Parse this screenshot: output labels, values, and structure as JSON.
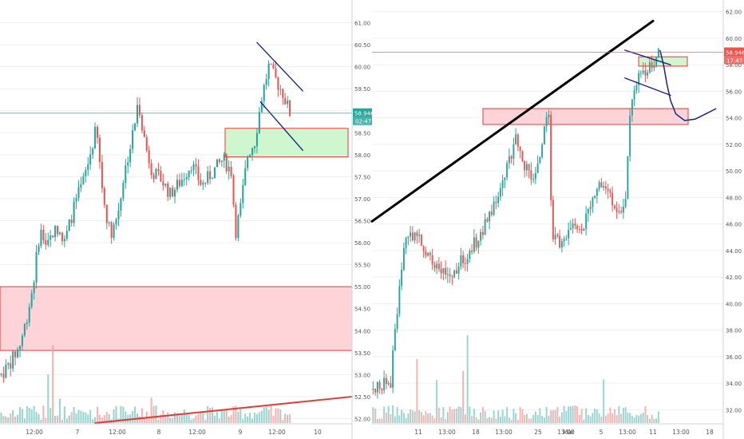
{
  "colors": {
    "up": "#26a69a",
    "down": "#ef5350",
    "vol_up": "#80cbc4",
    "vol_down": "#f4a09c",
    "zone_red_fill": "#ffcdd2",
    "zone_red_edge": "#e53935",
    "zone_green_fill": "#c8f5c8",
    "zone_green_edge": "#e53935",
    "price_line_left": "#26a69a",
    "price_line_right": "#ef5350",
    "trendline_black": "#000000",
    "trendline_red": "#e53935",
    "channel": "#1a237e",
    "grid": "#eef0f3",
    "axis_text": "#555555"
  },
  "chart_data": [
    {
      "type": "candlestick",
      "panel": "left",
      "ylim": [
        51.9,
        61.3
      ],
      "y_ticks": [
        "52.00",
        "52.50",
        "53.00",
        "53.50",
        "54.00",
        "54.50",
        "55.00",
        "55.50",
        "56.00",
        "56.50",
        "57.00",
        "57.50",
        "58.00",
        "58.50",
        "59.00",
        "59.50",
        "60.00",
        "60.50",
        "61.00"
      ],
      "x_ticks": [
        "12:00",
        "7",
        "12:00",
        "8",
        "12:00",
        "9",
        "12:00",
        "10"
      ],
      "last_price": {
        "value": "58.946",
        "countdown": "02:47"
      },
      "zones": [
        {
          "kind": "resistance",
          "color": "red",
          "y1": 53.55,
          "y2": 55.0
        },
        {
          "kind": "target",
          "color": "green",
          "y1": 57.95,
          "y2": 58.6
        }
      ],
      "trendlines": [
        {
          "color": "channel",
          "points": [
            [
              0.73,
              60.55
            ],
            [
              0.86,
              59.45
            ]
          ]
        },
        {
          "color": "channel",
          "points": [
            [
              0.74,
              59.2
            ],
            [
              0.86,
              58.1
            ]
          ]
        },
        {
          "color": "red",
          "points": [
            [
              0.27,
              51.9
            ],
            [
              1.0,
              52.5
            ]
          ]
        }
      ],
      "shape": [
        {
          "t": 0.0,
          "v": 53.0
        },
        {
          "t": 0.02,
          "v": 53.2
        },
        {
          "t": 0.05,
          "v": 53.6
        },
        {
          "t": 0.07,
          "v": 54.2
        },
        {
          "t": 0.09,
          "v": 55.0
        },
        {
          "t": 0.11,
          "v": 56.3
        },
        {
          "t": 0.13,
          "v": 55.9
        },
        {
          "t": 0.15,
          "v": 56.3
        },
        {
          "t": 0.18,
          "v": 56.0
        },
        {
          "t": 0.21,
          "v": 56.9
        },
        {
          "t": 0.23,
          "v": 57.3
        },
        {
          "t": 0.25,
          "v": 57.9
        },
        {
          "t": 0.27,
          "v": 58.6
        },
        {
          "t": 0.29,
          "v": 57.0
        },
        {
          "t": 0.31,
          "v": 56.2
        },
        {
          "t": 0.33,
          "v": 56.6
        },
        {
          "t": 0.35,
          "v": 57.6
        },
        {
          "t": 0.37,
          "v": 58.3
        },
        {
          "t": 0.39,
          "v": 59.2
        },
        {
          "t": 0.41,
          "v": 58.2
        },
        {
          "t": 0.43,
          "v": 57.6
        },
        {
          "t": 0.45,
          "v": 57.5
        },
        {
          "t": 0.48,
          "v": 57.1
        },
        {
          "t": 0.51,
          "v": 57.4
        },
        {
          "t": 0.54,
          "v": 57.8
        },
        {
          "t": 0.57,
          "v": 57.3
        },
        {
          "t": 0.6,
          "v": 57.6
        },
        {
          "t": 0.63,
          "v": 57.9
        },
        {
          "t": 0.655,
          "v": 57.6
        },
        {
          "t": 0.665,
          "v": 56.2
        },
        {
          "t": 0.68,
          "v": 56.8
        },
        {
          "t": 0.7,
          "v": 58.0
        },
        {
          "t": 0.72,
          "v": 58.3
        },
        {
          "t": 0.74,
          "v": 59.3
        },
        {
          "t": 0.76,
          "v": 60.0
        },
        {
          "t": 0.78,
          "v": 59.7
        },
        {
          "t": 0.8,
          "v": 59.4
        },
        {
          "t": 0.82,
          "v": 58.95
        }
      ]
    },
    {
      "type": "candlestick",
      "panel": "right",
      "ylim": [
        31.0,
        62.4
      ],
      "y_ticks": [
        "32.00",
        "34.00",
        "36.00",
        "38.00",
        "40.00",
        "42.00",
        "44.00",
        "46.00",
        "48.00",
        "50.00",
        "52.00",
        "54.00",
        "56.00",
        "58.00",
        "60.00",
        "62.00"
      ],
      "x_ticks": [
        "11",
        "13:00",
        "18",
        "13:00",
        "25",
        "13:00",
        "Mar",
        "5",
        "13:00",
        "11",
        "13:00",
        "18"
      ],
      "last_price": {
        "value": "58.946",
        "countdown": "17:47"
      },
      "zones": [
        {
          "kind": "support",
          "color": "red",
          "y1": 53.5,
          "y2": 54.7
        },
        {
          "kind": "target",
          "color": "green",
          "y1": 57.9,
          "y2": 58.6
        }
      ],
      "trendlines": [
        {
          "color": "black",
          "points": [
            [
              0.0,
              46.2
            ],
            [
              0.8,
              61.3
            ]
          ]
        },
        {
          "color": "channel",
          "points": [
            [
              0.72,
              59.1
            ],
            [
              0.85,
              58.0
            ]
          ]
        },
        {
          "color": "channel",
          "points": [
            [
              0.72,
              57.0
            ],
            [
              0.85,
              55.7
            ]
          ]
        }
      ],
      "projection": [
        [
          0.82,
          59.1
        ],
        [
          0.83,
          58.0
        ],
        [
          0.84,
          56.5
        ],
        [
          0.85,
          55.3
        ],
        [
          0.865,
          54.3
        ],
        [
          0.89,
          53.8
        ],
        [
          0.92,
          53.9
        ],
        [
          0.95,
          54.3
        ],
        [
          0.98,
          54.7
        ]
      ],
      "shape": [
        {
          "t": 0.0,
          "v": 33.5
        },
        {
          "t": 0.05,
          "v": 34.2
        },
        {
          "t": 0.07,
          "v": 40.0
        },
        {
          "t": 0.09,
          "v": 44.5
        },
        {
          "t": 0.12,
          "v": 45.5
        },
        {
          "t": 0.15,
          "v": 44.0
        },
        {
          "t": 0.18,
          "v": 43.0
        },
        {
          "t": 0.21,
          "v": 42.2
        },
        {
          "t": 0.24,
          "v": 42.8
        },
        {
          "t": 0.27,
          "v": 43.7
        },
        {
          "t": 0.3,
          "v": 45.0
        },
        {
          "t": 0.33,
          "v": 46.5
        },
        {
          "t": 0.36,
          "v": 48.5
        },
        {
          "t": 0.39,
          "v": 51.0
        },
        {
          "t": 0.41,
          "v": 52.5
        },
        {
          "t": 0.43,
          "v": 50.5
        },
        {
          "t": 0.45,
          "v": 49.5
        },
        {
          "t": 0.47,
          "v": 50.2
        },
        {
          "t": 0.49,
          "v": 53.5
        },
        {
          "t": 0.5,
          "v": 53.8
        },
        {
          "t": 0.51,
          "v": 45.0
        },
        {
          "t": 0.53,
          "v": 44.6
        },
        {
          "t": 0.55,
          "v": 45.3
        },
        {
          "t": 0.57,
          "v": 46.0
        },
        {
          "t": 0.59,
          "v": 45.6
        },
        {
          "t": 0.62,
          "v": 47.0
        },
        {
          "t": 0.64,
          "v": 48.8
        },
        {
          "t": 0.66,
          "v": 49.0
        },
        {
          "t": 0.68,
          "v": 47.5
        },
        {
          "t": 0.7,
          "v": 46.8
        },
        {
          "t": 0.72,
          "v": 48.5
        },
        {
          "t": 0.73,
          "v": 53.5
        },
        {
          "t": 0.745,
          "v": 56.8
        },
        {
          "t": 0.76,
          "v": 57.2
        },
        {
          "t": 0.78,
          "v": 57.6
        },
        {
          "t": 0.8,
          "v": 58.3
        },
        {
          "t": 0.815,
          "v": 58.95
        }
      ]
    }
  ]
}
